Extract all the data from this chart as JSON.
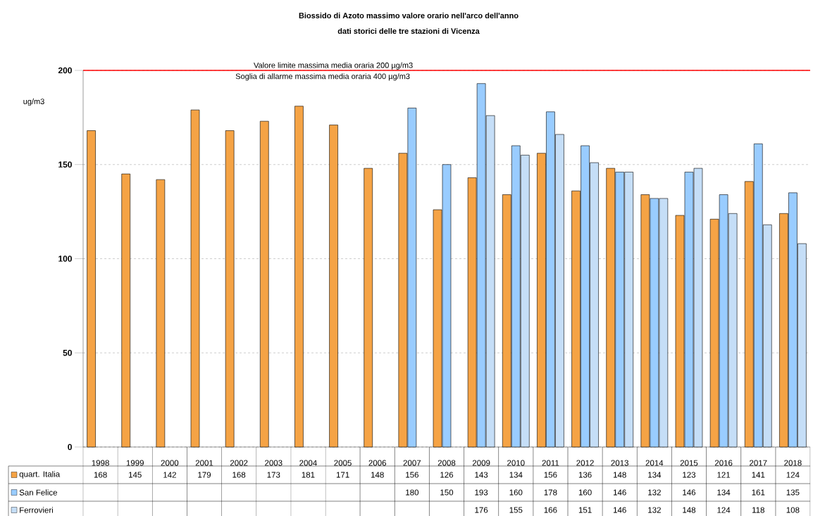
{
  "chart_data": {
    "type": "bar",
    "title": "Biossido di Azoto massimo valore orario nell'arco dell'anno",
    "subtitle": "dati storici delle tre stazioni di Vicenza",
    "ylabel": "ug/m3",
    "categories": [
      "1998",
      "1999",
      "2000",
      "2001",
      "2002",
      "2003",
      "2004",
      "2005",
      "2006",
      "2007",
      "2008",
      "2009",
      "2010",
      "2011",
      "2012",
      "2013",
      "2014",
      "2015",
      "2016",
      "2017",
      "2018"
    ],
    "series": [
      {
        "name": "quart. Italia",
        "color": "#f5a345",
        "values": [
          168,
          145,
          142,
          179,
          168,
          173,
          181,
          171,
          148,
          156,
          126,
          143,
          134,
          156,
          136,
          148,
          134,
          123,
          121,
          141,
          124
        ],
        "value_labels": [
          "168",
          "145",
          "142",
          "179",
          "168",
          "173",
          "181",
          "171",
          "148",
          "156",
          "126",
          "143",
          "134",
          "156",
          "136",
          "148",
          "134",
          "123",
          "121",
          "141",
          "124"
        ]
      },
      {
        "name": "San Felice",
        "color": "#99ccff",
        "values": [
          null,
          null,
          null,
          null,
          null,
          null,
          null,
          null,
          null,
          180,
          150,
          193,
          160,
          178,
          160,
          146,
          132,
          146,
          134,
          161,
          135
        ],
        "value_labels": [
          null,
          null,
          null,
          null,
          null,
          null,
          null,
          null,
          null,
          "180",
          "150",
          "193",
          "160",
          "178",
          "160",
          "146",
          "132",
          "146",
          "134",
          "161",
          "135"
        ]
      },
      {
        "name": "Ferrovieri",
        "color": "#c5def7",
        "values": [
          null,
          null,
          null,
          null,
          null,
          null,
          null,
          null,
          null,
          null,
          null,
          176,
          155,
          166,
          151,
          146,
          132,
          148,
          124,
          118,
          108
        ],
        "value_labels": [
          null,
          null,
          null,
          null,
          null,
          null,
          null,
          null,
          null,
          null,
          null,
          "176",
          "155",
          "166",
          "151",
          "146",
          "132",
          "148",
          "124",
          "118",
          "108"
        ]
      }
    ],
    "ylim": [
      0,
      200
    ],
    "yticks": [
      0,
      50,
      100,
      150,
      200
    ],
    "grid": "y",
    "legend": "bottom",
    "ref_lines": [
      {
        "axis": "y",
        "value": 200,
        "label": "Valore limite massima  media oraria 200 µg/m3",
        "color": "#ff0000"
      }
    ],
    "annotations": [
      "Soglia di allarme  massima media oraria 400 µg/m3"
    ]
  }
}
